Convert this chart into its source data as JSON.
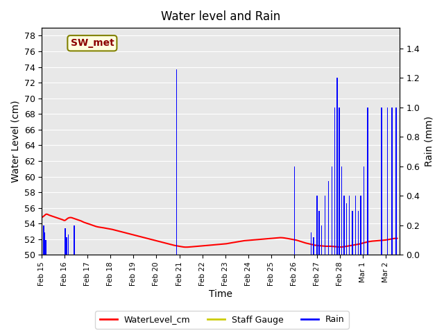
{
  "title": "Water level and Rain",
  "xlabel": "Time",
  "ylabel_left": "Water Level (cm)",
  "ylabel_right": "Rain (mm)",
  "annotation_text": "SW_met",
  "ylim_left": [
    50,
    79
  ],
  "ylim_right": [
    0.0,
    1.54
  ],
  "yticks_left": [
    50,
    52,
    54,
    56,
    58,
    60,
    62,
    64,
    66,
    68,
    70,
    72,
    74,
    76,
    78
  ],
  "yticks_right": [
    0.0,
    0.2,
    0.4,
    0.6,
    0.8,
    1.0,
    1.2,
    1.4
  ],
  "background_color": "#e8e8e8",
  "legend_entries": [
    "WaterLevel_cm",
    "Staff Gauge",
    "Rain"
  ],
  "legend_colors": [
    "#ff0000",
    "#cccc00",
    "#0000ff"
  ],
  "water_level_color": "#ff0000",
  "rain_color": "#0000ff",
  "staff_gauge_color": "#cccc00",
  "water_level_x": [
    0.0,
    0.1,
    0.2,
    0.3,
    0.4,
    0.5,
    0.6,
    0.7,
    0.8,
    0.9,
    1.0,
    1.1,
    1.2,
    1.3,
    1.4,
    1.5,
    1.6,
    1.7,
    1.8,
    1.9,
    2.0,
    2.2,
    2.4,
    2.6,
    2.8,
    3.0,
    3.2,
    3.4,
    3.6,
    3.8,
    4.0,
    4.2,
    4.4,
    4.6,
    4.8,
    5.0,
    5.2,
    5.4,
    5.6,
    5.8,
    6.0,
    6.2,
    6.4,
    6.6,
    6.8,
    7.0,
    7.2,
    7.4,
    7.6,
    7.8,
    8.0,
    8.2,
    8.4,
    8.6,
    8.8,
    9.0,
    9.2,
    9.4,
    9.6,
    9.8,
    10.0,
    10.2,
    10.4,
    10.6,
    10.8,
    11.0,
    11.2,
    11.4,
    11.6,
    11.8,
    12.0,
    12.2,
    12.4,
    12.6,
    12.8,
    13.0,
    13.2,
    13.4,
    13.6,
    13.8,
    14.0,
    14.2,
    14.4,
    14.6,
    14.8,
    15.0,
    15.2,
    15.4,
    15.5
  ],
  "water_level_y": [
    54.8,
    55.0,
    55.2,
    55.1,
    55.0,
    54.9,
    54.8,
    54.7,
    54.6,
    54.5,
    54.4,
    54.6,
    54.75,
    54.75,
    54.65,
    54.55,
    54.45,
    54.35,
    54.2,
    54.1,
    54.0,
    53.8,
    53.6,
    53.5,
    53.4,
    53.3,
    53.15,
    53.0,
    52.85,
    52.7,
    52.55,
    52.4,
    52.25,
    52.1,
    51.95,
    51.8,
    51.65,
    51.5,
    51.35,
    51.2,
    51.1,
    51.0,
    51.0,
    51.05,
    51.1,
    51.15,
    51.2,
    51.25,
    51.3,
    51.35,
    51.4,
    51.5,
    51.6,
    51.7,
    51.8,
    51.85,
    51.9,
    51.95,
    52.0,
    52.05,
    52.1,
    52.15,
    52.2,
    52.15,
    52.05,
    51.95,
    51.8,
    51.6,
    51.45,
    51.3,
    51.2,
    51.15,
    51.1,
    51.1,
    51.05,
    51.0,
    51.05,
    51.15,
    51.25,
    51.35,
    51.5,
    51.65,
    51.75,
    51.8,
    51.85,
    51.9,
    52.0,
    52.1,
    52.1
  ],
  "rain_days": [
    0.08,
    0.13,
    0.17,
    1.02,
    1.08,
    1.15,
    1.42,
    5.88,
    11.02,
    11.75,
    11.85,
    12.0,
    12.1,
    12.2,
    12.35,
    12.5,
    12.65,
    12.78,
    12.88,
    12.98,
    13.08,
    13.18,
    13.3,
    13.42,
    13.55,
    13.68,
    13.8,
    13.92,
    14.05,
    14.22,
    14.82,
    15.08,
    15.28,
    15.45
  ],
  "rain_vals": [
    0.2,
    0.15,
    0.1,
    0.18,
    0.12,
    0.14,
    0.2,
    1.26,
    0.6,
    0.15,
    0.12,
    0.4,
    0.3,
    0.2,
    0.4,
    0.5,
    0.6,
    1.0,
    1.2,
    1.0,
    0.6,
    0.4,
    0.35,
    0.4,
    0.3,
    0.4,
    0.3,
    0.4,
    0.6,
    1.0,
    1.0,
    1.0,
    1.0,
    1.0
  ],
  "xlim": [
    0,
    15.6
  ],
  "xtick_positions": [
    0,
    1,
    2,
    3,
    4,
    5,
    6,
    7,
    8,
    9,
    10,
    11,
    12,
    13,
    14,
    15
  ],
  "xtick_labels": [
    "Feb 15",
    "Feb 16",
    "Feb 17",
    "Feb 18",
    "Feb 19",
    "Feb 20",
    "Feb 21",
    "Feb 22",
    "Feb 23",
    "Feb 24",
    "Feb 25",
    "Feb 26",
    "Feb 27",
    "Feb 28",
    "Mar 1",
    "Mar 2"
  ]
}
